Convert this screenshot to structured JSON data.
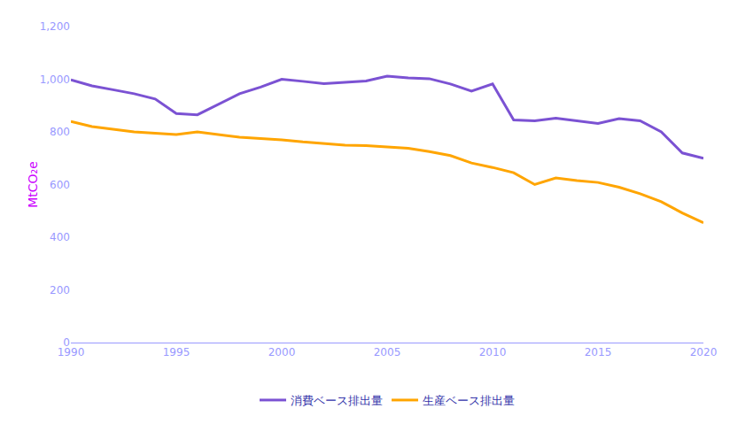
{
  "chart_data": {
    "type": "line",
    "x": [
      1990,
      1991,
      1992,
      1993,
      1994,
      1995,
      1996,
      1997,
      1998,
      1999,
      2000,
      2001,
      2002,
      2003,
      2004,
      2005,
      2006,
      2007,
      2008,
      2009,
      2010,
      2011,
      2012,
      2013,
      2014,
      2015,
      2016,
      2017,
      2018,
      2019,
      2020
    ],
    "series": [
      {
        "name": "消費ベース排出量",
        "color": "#7B52D3",
        "values": [
          998,
          975,
          960,
          945,
          925,
          870,
          865,
          905,
          945,
          970,
          1000,
          992,
          983,
          988,
          993,
          1012,
          1005,
          1002,
          982,
          955,
          982,
          845,
          842,
          852,
          842,
          832,
          850,
          842,
          800,
          720,
          700
        ]
      },
      {
        "name": "生産ベース排出量",
        "color": "#FFA500",
        "values": [
          840,
          820,
          810,
          800,
          795,
          790,
          800,
          790,
          780,
          775,
          770,
          762,
          755,
          750,
          748,
          742,
          738,
          725,
          710,
          682,
          665,
          645,
          600,
          625,
          615,
          608,
          590,
          565,
          535,
          492,
          455
        ]
      }
    ],
    "ylabel": "MtCO₂e",
    "xlim": [
      1990,
      2020
    ],
    "xticks": [
      1990,
      1995,
      2000,
      2005,
      2010,
      2015,
      2020
    ],
    "ylim": [
      0,
      1200
    ],
    "yticks": [
      0,
      200,
      400,
      600,
      800,
      {
        "value": 1000,
        "label": "1,000"
      },
      {
        "value": 1200,
        "label": "1,200"
      }
    ],
    "grid": false,
    "legend": "bottom"
  }
}
